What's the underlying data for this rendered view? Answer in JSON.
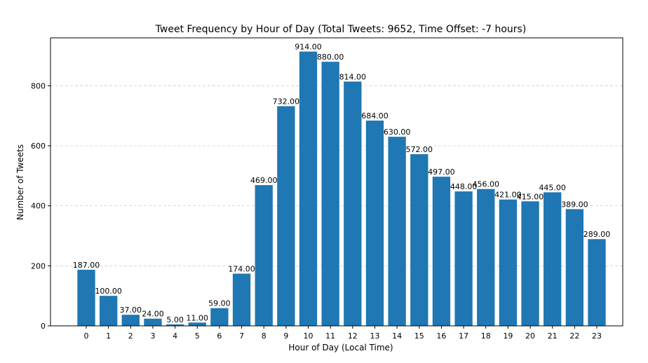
{
  "chart_data": {
    "type": "bar",
    "title": "Tweet Frequency by Hour of Day (Total Tweets: 9652, Time Offset: -7 hours)",
    "xlabel": "Hour of Day (Local Time)",
    "ylabel": "Number of Tweets",
    "categories": [
      "0",
      "1",
      "2",
      "3",
      "4",
      "5",
      "6",
      "7",
      "8",
      "9",
      "10",
      "11",
      "12",
      "13",
      "14",
      "15",
      "16",
      "17",
      "18",
      "19",
      "20",
      "21",
      "22",
      "23"
    ],
    "values": [
      187,
      100,
      37,
      24,
      5,
      11,
      59,
      174,
      469,
      732,
      914,
      880,
      814,
      684,
      630,
      572,
      497,
      448,
      456,
      421,
      415,
      445,
      389,
      289
    ],
    "data_labels": [
      "187.00",
      "100.00",
      "37.00",
      "24.00",
      "5.00",
      "11.00",
      "59.00",
      "174.00",
      "469.00",
      "732.00",
      "914.00",
      "880.00",
      "814.00",
      "684.00",
      "630.00",
      "572.00",
      "497.00",
      "448.00",
      "456.00",
      "421.00",
      "415.00",
      "445.00",
      "389.00",
      "289.00"
    ],
    "yticks": [
      0,
      200,
      400,
      600,
      800
    ],
    "ylim": [
      0,
      959.7
    ],
    "grid": "y-dashed",
    "bar_color": "#1f77b4",
    "legend": "none"
  }
}
